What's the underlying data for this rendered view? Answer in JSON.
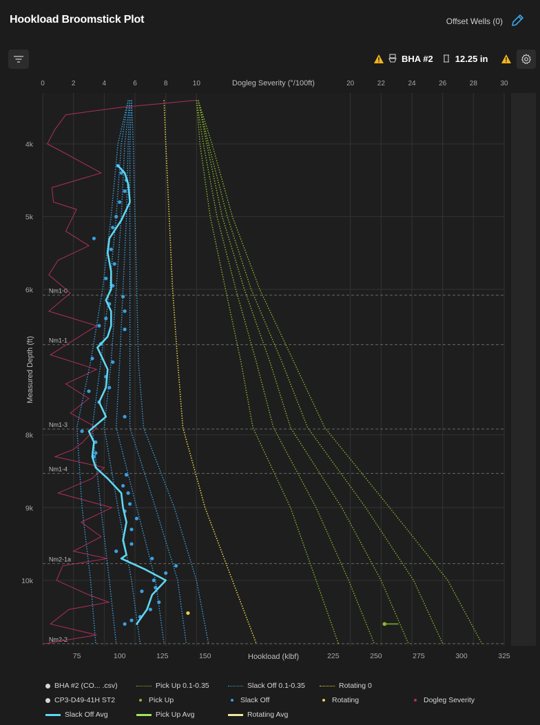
{
  "header": {
    "title": "Hookload Broomstick Plot",
    "offset_wells": "Offset Wells (0)"
  },
  "toolbar": {
    "bha_label": "BHA #2",
    "hole_size": "12.25 in"
  },
  "legend": [
    {
      "label": "BHA #2 (CO... .csv)",
      "kind": "dot",
      "color": "#d6d6d6"
    },
    {
      "label": "Pick Up 0.1-0.35",
      "kind": "dash",
      "color": "#8ab82e"
    },
    {
      "label": "Slack Off 0.1-0.35",
      "kind": "dash",
      "color": "#3aa0e0"
    },
    {
      "label": "Rotating 0",
      "kind": "dash",
      "color": "#e8d24a"
    },
    {
      "label": "CP3-D49-41H ST2",
      "kind": "dot",
      "color": "#d6d6d6"
    },
    {
      "label": "Pick Up",
      "kind": "smalldot",
      "color": "#8ab82e"
    },
    {
      "label": "Slack Off",
      "kind": "smalldot",
      "color": "#3aa0e0"
    },
    {
      "label": "Rotating",
      "kind": "smalldot",
      "color": "#e8d24a"
    },
    {
      "label": "Dogleg Severity",
      "kind": "smalldot",
      "color": "#b0305a"
    },
    {
      "label": "Slack Off Avg",
      "kind": "line",
      "color": "#5fd8f2"
    },
    {
      "label": "Pick Up Avg",
      "kind": "line",
      "color": "#a6e35f"
    },
    {
      "label": "Rotating Avg",
      "kind": "line",
      "color": "#f2e6a0"
    }
  ],
  "chart_data": {
    "type": "scatter",
    "xlabel": "Hookload (klbf)",
    "ylabel": "Measured Depth (ft)",
    "x2label": "Dogleg Severity (°/100ft)",
    "xlim": [
      55,
      325
    ],
    "ylim": [
      3300,
      10900
    ],
    "x2lim": [
      0,
      30
    ],
    "x_ticks": [
      75,
      100,
      125,
      150,
      225,
      250,
      275,
      300,
      325
    ],
    "x2_ticks": [
      0,
      2,
      4,
      6,
      8,
      10,
      20,
      22,
      24,
      26,
      28,
      30
    ],
    "y_ticks": [
      {
        "v": 4000,
        "label": "4k"
      },
      {
        "v": 5000,
        "label": "5k"
      },
      {
        "v": 6000,
        "label": "6k"
      },
      {
        "v": 8000,
        "label": "8k"
      },
      {
        "v": 9000,
        "label": "9k"
      },
      {
        "v": 10000,
        "label": "10k"
      }
    ],
    "formations": [
      {
        "name": "Nm1-0",
        "depth": 6080
      },
      {
        "name": "Nm1-1",
        "depth": 6760
      },
      {
        "name": "Nm1-3",
        "depth": 7920
      },
      {
        "name": "Nm1-4",
        "depth": 8530
      },
      {
        "name": "Nm2-1a",
        "depth": 9770
      },
      {
        "name": "Nm2-2",
        "depth": 10870
      }
    ],
    "slack_off_models": [
      [
        [
          105,
          3400
        ],
        [
          99,
          4000
        ],
        [
          95,
          5000
        ],
        [
          90,
          6000
        ],
        [
          83,
          7000
        ],
        [
          75,
          7900
        ],
        [
          78,
          9000
        ],
        [
          83,
          10000
        ],
        [
          86,
          10870
        ]
      ],
      [
        [
          105,
          3400
        ],
        [
          101,
          4000
        ],
        [
          98,
          5000
        ],
        [
          94,
          6000
        ],
        [
          89,
          7000
        ],
        [
          84,
          7900
        ],
        [
          89,
          9000
        ],
        [
          94,
          10000
        ],
        [
          98,
          10870
        ]
      ],
      [
        [
          106,
          3400
        ],
        [
          103,
          4000
        ],
        [
          101,
          5000
        ],
        [
          98,
          6000
        ],
        [
          95,
          7000
        ],
        [
          91,
          7900
        ],
        [
          99,
          9000
        ],
        [
          107,
          10000
        ],
        [
          112,
          10870
        ]
      ],
      [
        [
          106,
          3400
        ],
        [
          105,
          4000
        ],
        [
          104,
          5000
        ],
        [
          102,
          6000
        ],
        [
          100,
          7000
        ],
        [
          98,
          7900
        ],
        [
          110,
          9000
        ],
        [
          121,
          10000
        ],
        [
          126,
          10870
        ]
      ],
      [
        [
          107,
          3400
        ],
        [
          106,
          4000
        ],
        [
          106,
          5000
        ],
        [
          106,
          6000
        ],
        [
          106,
          7000
        ],
        [
          106,
          7900
        ],
        [
          121,
          9000
        ],
        [
          134,
          10000
        ],
        [
          139,
          10870
        ]
      ],
      [
        [
          107,
          3400
        ],
        [
          108,
          4000
        ],
        [
          109,
          5000
        ],
        [
          110,
          6000
        ],
        [
          111,
          7000
        ],
        [
          114,
          7900
        ],
        [
          132,
          9000
        ],
        [
          145,
          10000
        ],
        [
          152,
          10870
        ]
      ]
    ],
    "pick_up_models": [
      [
        [
          145,
          3400
        ],
        [
          147,
          4000
        ],
        [
          153,
          5000
        ],
        [
          162,
          6000
        ],
        [
          171,
          7000
        ],
        [
          178,
          7900
        ],
        [
          200,
          9000
        ],
        [
          215,
          10000
        ],
        [
          228,
          10870
        ]
      ],
      [
        [
          145,
          3400
        ],
        [
          149,
          4000
        ],
        [
          157,
          5000
        ],
        [
          168,
          6000
        ],
        [
          180,
          7000
        ],
        [
          190,
          7900
        ],
        [
          215,
          9000
        ],
        [
          234,
          10000
        ],
        [
          249,
          10870
        ]
      ],
      [
        [
          146,
          3400
        ],
        [
          151,
          4000
        ],
        [
          160,
          5000
        ],
        [
          173,
          6000
        ],
        [
          188,
          7000
        ],
        [
          200,
          7900
        ],
        [
          230,
          9000
        ],
        [
          253,
          10000
        ],
        [
          269,
          10870
        ]
      ],
      [
        [
          146,
          3400
        ],
        [
          152,
          4000
        ],
        [
          163,
          5000
        ],
        [
          177,
          6000
        ],
        [
          195,
          7000
        ],
        [
          210,
          7900
        ],
        [
          244,
          9000
        ],
        [
          272,
          10000
        ],
        [
          289,
          10870
        ]
      ],
      [
        [
          146,
          3400
        ],
        [
          154,
          4000
        ],
        [
          166,
          5000
        ],
        [
          182,
          6000
        ],
        [
          202,
          7000
        ],
        [
          220,
          7900
        ],
        [
          258,
          9000
        ],
        [
          292,
          10000
        ],
        [
          312,
          10870
        ]
      ]
    ],
    "rotating_model": [
      [
        126,
        3400
      ],
      [
        127,
        4000
      ],
      [
        129,
        5000
      ],
      [
        131,
        6000
      ],
      [
        134,
        7000
      ],
      [
        137,
        7900
      ],
      [
        150,
        9000
      ],
      [
        166,
        10000
      ],
      [
        180,
        10870
      ]
    ],
    "slack_off_avg": [
      [
        99,
        4300
      ],
      [
        103,
        4400
      ],
      [
        105,
        4550
      ],
      [
        106,
        4800
      ],
      [
        101,
        5050
      ],
      [
        94,
        5300
      ],
      [
        93,
        5500
      ],
      [
        95,
        5750
      ],
      [
        95,
        6000
      ],
      [
        92,
        6150
      ],
      [
        95,
        6300
      ],
      [
        95,
        6500
      ],
      [
        93,
        6650
      ],
      [
        87,
        6800
      ],
      [
        90,
        6950
      ],
      [
        93,
        7100
      ],
      [
        92,
        7350
      ],
      [
        88,
        7550
      ],
      [
        92,
        7750
      ],
      [
        82,
        7950
      ],
      [
        85,
        8100
      ],
      [
        84,
        8300
      ],
      [
        86,
        8450
      ],
      [
        93,
        8600
      ],
      [
        101,
        8800
      ],
      [
        102,
        9000
      ],
      [
        104,
        9200
      ],
      [
        102,
        9450
      ],
      [
        104,
        9650
      ],
      [
        101,
        9700
      ],
      [
        115,
        9850
      ],
      [
        127,
        10000
      ],
      [
        119,
        10200
      ],
      [
        116,
        10400
      ],
      [
        110,
        10600
      ]
    ],
    "slack_off_points": [
      [
        99,
        4300
      ],
      [
        101,
        4400
      ],
      [
        104,
        4500
      ],
      [
        103,
        4650
      ],
      [
        100,
        4800
      ],
      [
        98,
        5000
      ],
      [
        85,
        5300
      ],
      [
        96,
        5150
      ],
      [
        95,
        5450
      ],
      [
        97,
        5650
      ],
      [
        92,
        5850
      ],
      [
        96,
        5950
      ],
      [
        102,
        6100
      ],
      [
        94,
        6200
      ],
      [
        92,
        6400
      ],
      [
        88,
        6500
      ],
      [
        103,
        6300
      ],
      [
        103,
        6550
      ],
      [
        89,
        6750
      ],
      [
        84,
        6950
      ],
      [
        96,
        7000
      ],
      [
        92,
        7200
      ],
      [
        82,
        7400
      ],
      [
        88,
        7550
      ],
      [
        94,
        7350
      ],
      [
        103,
        7750
      ],
      [
        78,
        7950
      ],
      [
        86,
        8100
      ],
      [
        86,
        8250
      ],
      [
        85,
        8300
      ],
      [
        104,
        8550
      ],
      [
        102,
        8700
      ],
      [
        105,
        8800
      ],
      [
        106,
        8950
      ],
      [
        103,
        9050
      ],
      [
        110,
        9150
      ],
      [
        107,
        9300
      ],
      [
        98,
        9600
      ],
      [
        107,
        9500
      ],
      [
        119,
        9700
      ],
      [
        133,
        9800
      ],
      [
        127,
        9900
      ],
      [
        120,
        10000
      ],
      [
        113,
        10150
      ],
      [
        121,
        10100
      ],
      [
        123,
        10300
      ],
      [
        118,
        10400
      ],
      [
        112,
        10500
      ],
      [
        107,
        10550
      ],
      [
        103,
        10600
      ]
    ],
    "rotating_points": [
      [
        140,
        10450
      ]
    ],
    "pick_up_points": [
      [
        255,
        10600
      ]
    ],
    "dogleg_profile": [
      [
        10,
        3400
      ],
      [
        5,
        3500
      ],
      [
        1.5,
        3600
      ],
      [
        0.8,
        3800
      ],
      [
        0.3,
        4000
      ],
      [
        1.2,
        4100
      ],
      [
        3.8,
        4400
      ],
      [
        0.6,
        4600
      ],
      [
        0.7,
        4800
      ],
      [
        2.2,
        4900
      ],
      [
        1.5,
        5200
      ],
      [
        3.0,
        5400
      ],
      [
        1.0,
        5600
      ],
      [
        0.4,
        5800
      ],
      [
        1.8,
        6050
      ],
      [
        0.4,
        6300
      ],
      [
        3.5,
        6500
      ],
      [
        2.0,
        6700
      ],
      [
        0.5,
        6900
      ],
      [
        3.5,
        7100
      ],
      [
        1.5,
        7300
      ],
      [
        3.0,
        7500
      ],
      [
        1.8,
        7700
      ],
      [
        3.5,
        7900
      ],
      [
        2.6,
        8100
      ],
      [
        2.0,
        8200
      ],
      [
        0.8,
        8300
      ],
      [
        4.0,
        8450
      ],
      [
        3.2,
        8600
      ],
      [
        1.0,
        8800
      ],
      [
        4.5,
        9000
      ],
      [
        2.5,
        9200
      ],
      [
        3.8,
        9400
      ],
      [
        2.0,
        9600
      ],
      [
        4.2,
        9700
      ],
      [
        1.3,
        9800
      ],
      [
        0.9,
        10000
      ],
      [
        3.0,
        10200
      ],
      [
        4.3,
        10300
      ],
      [
        1.7,
        10400
      ],
      [
        0.5,
        10600
      ],
      [
        3.5,
        10750
      ],
      [
        0.2,
        10870
      ]
    ],
    "x_scale": "linear"
  }
}
